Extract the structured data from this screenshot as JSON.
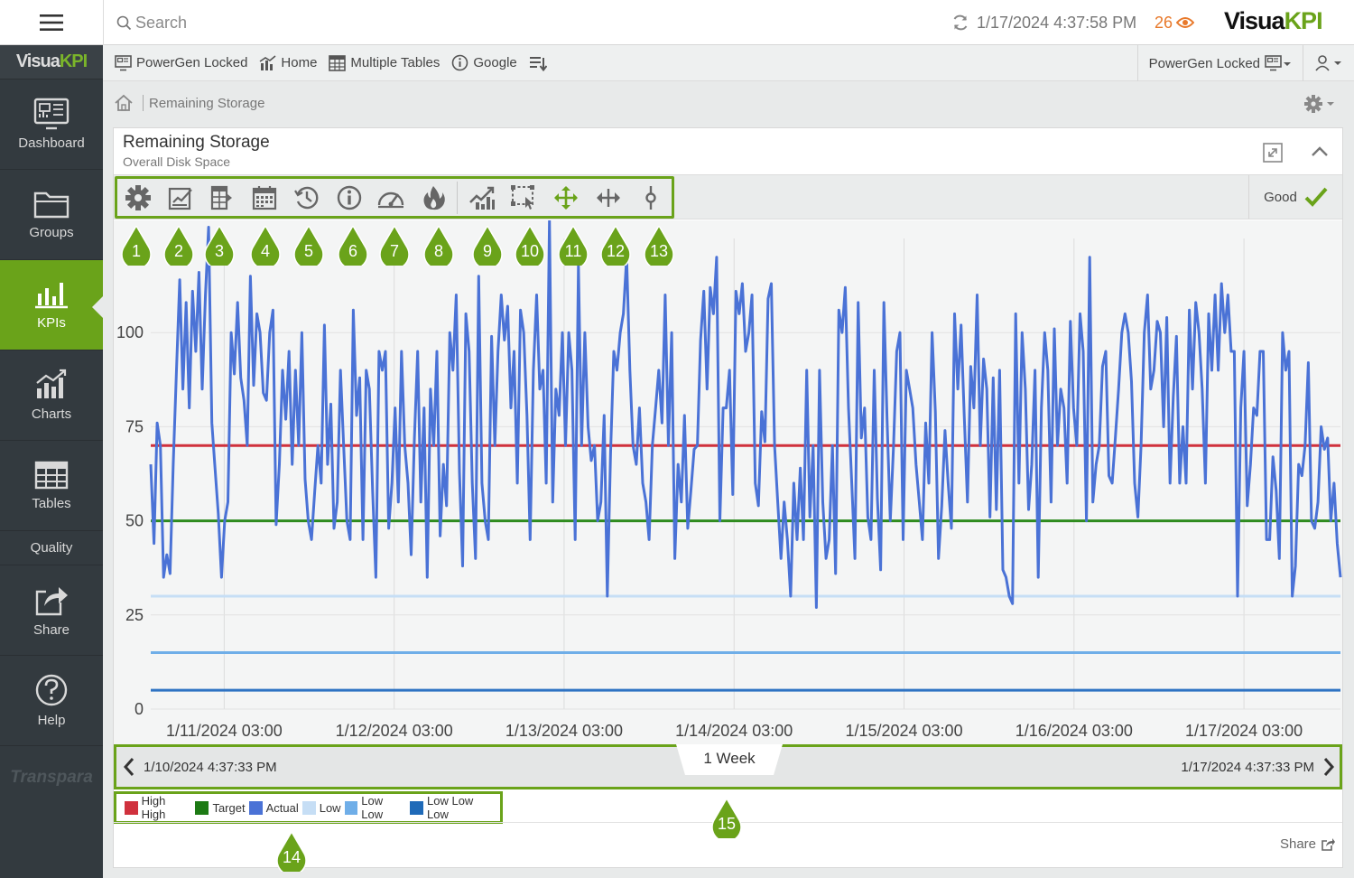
{
  "topbar": {
    "search_placeholder": "Search",
    "timestamp": "1/17/2024 4:37:58 PM",
    "alert_count": "26",
    "brand_a": "Visua",
    "brand_b": "KPI"
  },
  "nav": {
    "logo_a": "Visua",
    "logo_b": "KPI",
    "items": [
      {
        "label": "Dashboard",
        "icon": "dashboard-icon"
      },
      {
        "label": "Groups",
        "icon": "folder-icon"
      },
      {
        "label": "KPIs",
        "icon": "kpi-icon"
      },
      {
        "label": "Charts",
        "icon": "charts-icon"
      },
      {
        "label": "Tables",
        "icon": "table-icon"
      }
    ],
    "quality_label": "Quality",
    "bottom_items": [
      {
        "label": "Share",
        "icon": "share-icon"
      },
      {
        "label": "Help",
        "icon": "help-icon"
      }
    ],
    "footer_logo": "Transpara"
  },
  "subbar": {
    "links": [
      "PowerGen Locked",
      "Home",
      "Multiple Tables",
      "Google"
    ],
    "dashboard_select": "PowerGen Locked"
  },
  "breadcrumb": {
    "current": "Remaining Storage"
  },
  "panel": {
    "title": "Remaining Storage",
    "subtitle": "Overall Disk Space",
    "status": "Good",
    "share_label": "Share"
  },
  "toolbar_icons": [
    "settings-icon",
    "edit-chart-icon",
    "export-icon",
    "calendar-icon",
    "history-icon",
    "info-icon",
    "gauge-icon",
    "fire-icon",
    "trend-icon",
    "select-zoom-icon",
    "pan-icon",
    "horizontal-scroll-icon",
    "cursor-icon"
  ],
  "callouts": [
    "1",
    "2",
    "3",
    "4",
    "5",
    "6",
    "7",
    "8",
    "9",
    "10",
    "11",
    "12",
    "13",
    "14",
    "15"
  ],
  "navigator": {
    "start": "1/10/2024 4:37:33 PM",
    "end": "1/17/2024 4:37:33 PM",
    "range": "1 Week"
  },
  "colors": {
    "accent": "#6aa31a",
    "high_high": "#d0313d",
    "target": "#2e8b1e",
    "actual": "#4a72d6",
    "low": "#c6def5",
    "low_low": "#6faee8",
    "low_low_low": "#2f73c3"
  },
  "chart_data": {
    "type": "line",
    "ylim": [
      0,
      125
    ],
    "yticks": [
      0,
      25,
      50,
      75,
      100
    ],
    "ytick_labels": [
      "0",
      "25",
      "50",
      "75",
      "100"
    ],
    "xticks": [
      "1/11/2024 03:00",
      "1/12/2024 03:00",
      "1/13/2024 03:00",
      "1/14/2024 03:00",
      "1/15/2024 03:00",
      "1/16/2024 03:00",
      "1/17/2024 03:00"
    ],
    "x_range": [
      "1/10/2024 4:37:33 PM",
      "1/17/2024 4:37:33 PM"
    ],
    "grid": true,
    "legend_position": "bottom-left",
    "limits": [
      {
        "name": "High High",
        "value": 70,
        "color": "#d0313d"
      },
      {
        "name": "Target",
        "value": 50,
        "color": "#2e8b1e"
      },
      {
        "name": "Low",
        "value": 30,
        "color": "#c6def5"
      },
      {
        "name": "Low Low",
        "value": 15,
        "color": "#6faee8"
      },
      {
        "name": "Low Low Low",
        "value": 5,
        "color": "#2f73c3"
      }
    ],
    "series": [
      {
        "name": "Actual",
        "color": "#4a72d6",
        "values": [
          65,
          44,
          76,
          70,
          35,
          41,
          36,
          65,
          90,
          114,
          85,
          108,
          80,
          111,
          95,
          116,
          85,
          110,
          128,
          76,
          64,
          52,
          35,
          50,
          55,
          100,
          89,
          108,
          88,
          82,
          70,
          115,
          86,
          105,
          100,
          84,
          82,
          100,
          106,
          49,
          65,
          90,
          77,
          95,
          65,
          90,
          70,
          100,
          61,
          50,
          45,
          58,
          70,
          60,
          102,
          65,
          81,
          48,
          55,
          90,
          70,
          50,
          45,
          106,
          78,
          88,
          45,
          90,
          85,
          58,
          35,
          95,
          90,
          95,
          48,
          60,
          80,
          55,
          95,
          70,
          60,
          41,
          72,
          95,
          55,
          80,
          35,
          85,
          70,
          95,
          46,
          65,
          54,
          100,
          90,
          110,
          63,
          38,
          105,
          95,
          60,
          40,
          115,
          60,
          50,
          45,
          99,
          70,
          95,
          110,
          98,
          107,
          80,
          95,
          60,
          106,
          100,
          78,
          45,
          90,
          110,
          85,
          90,
          60,
          130,
          55,
          85,
          78,
          100,
          70,
          100,
          90,
          45,
          118,
          70,
          100,
          75,
          66,
          70,
          50,
          55,
          78,
          30,
          68,
          95,
          90,
          100,
          105,
          120,
          90,
          70,
          65,
          80,
          60,
          55,
          45,
          70,
          80,
          90,
          76,
          110,
          70,
          100,
          40,
          65,
          55,
          78,
          48,
          58,
          69,
          70,
          98,
          111,
          85,
          112,
          105,
          120,
          50,
          80,
          80,
          90,
          57,
          111,
          105,
          113,
          95,
          100,
          110,
          60,
          54,
          79,
          71,
          109,
          113,
          70,
          55,
          40,
          55,
          45,
          30,
          60,
          45,
          64,
          45,
          90,
          51,
          70,
          27,
          90,
          55,
          40,
          45,
          70,
          36,
          106,
          100,
          112,
          80,
          60,
          40,
          108,
          72,
          80,
          51,
          45,
          90,
          56,
          37,
          108,
          77,
          50,
          70,
          95,
          100,
          45,
          90,
          85,
          80,
          65,
          55,
          45,
          76,
          60,
          100,
          79,
          40,
          54,
          74,
          60,
          48,
          105,
          85,
          102,
          78,
          55,
          91,
          80,
          110,
          70,
          93,
          85,
          51,
          88,
          53,
          90,
          37,
          35,
          30,
          28,
          105,
          60,
          100,
          85,
          53,
          65,
          90,
          35,
          80,
          100,
          90,
          55,
          101,
          70,
          85,
          80,
          60,
          103,
          80,
          70,
          105,
          95,
          50,
          120,
          55,
          65,
          70,
          91,
          95,
          62,
          60,
          72,
          85,
          100,
          105,
          100,
          87,
          60,
          51,
          70,
          100,
          110,
          85,
          90,
          103,
          100,
          75,
          104,
          60,
          83,
          99,
          60,
          75,
          60,
          106,
          85,
          108,
          100,
          85,
          60,
          105,
          90,
          110,
          90,
          113,
          100,
          110,
          95,
          95,
          30,
          80,
          95,
          54,
          65,
          80,
          78,
          95,
          95,
          45,
          45,
          67,
          58,
          40,
          100,
          90,
          95,
          30,
          38,
          65,
          62,
          70,
          92,
          50,
          48,
          55,
          75,
          69,
          72,
          50,
          60,
          44,
          35
        ]
      }
    ]
  }
}
